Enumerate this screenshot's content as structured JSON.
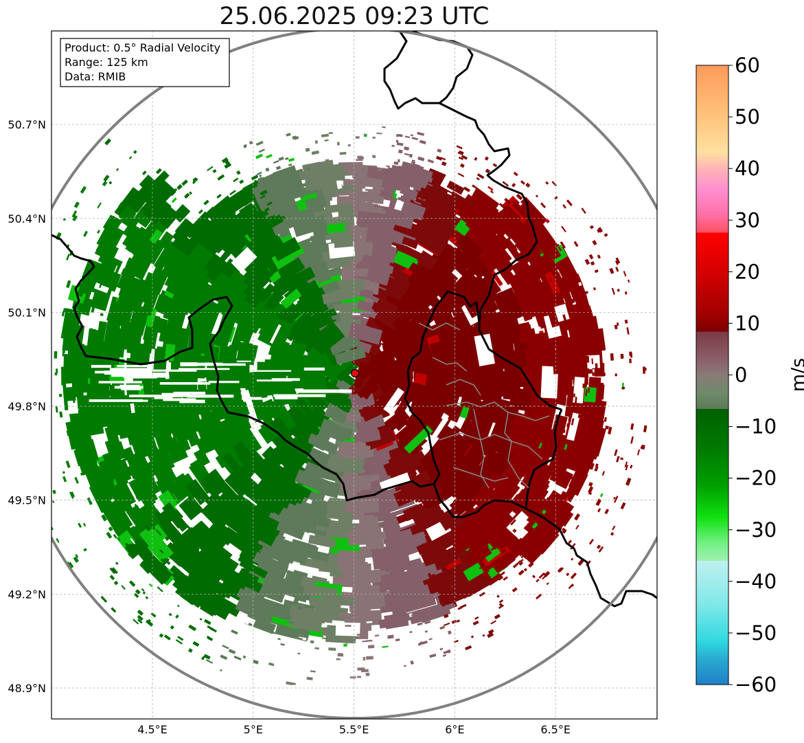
{
  "title": "25.06.2025 09:23 UTC",
  "info_box": {
    "product": "Product: 0.5° Radial Velocity",
    "range": "Range: 125 km",
    "data": "Data: RMIB"
  },
  "map": {
    "lon_range": [
      4.0,
      6.99
    ],
    "lat_range": [
      48.8,
      50.99
    ],
    "lon_ticks": [
      "4.5°E",
      "5°E",
      "5.5°E",
      "6°E",
      "6.5°E"
    ],
    "lat_ticks": [
      "48.9°N",
      "49.2°N",
      "49.5°N",
      "49.8°N",
      "50.1°N",
      "50.4°N",
      "50.7°N"
    ],
    "radar_site": {
      "lon": 5.505,
      "lat": 49.914
    },
    "range_ring_km": 125,
    "grid": true
  },
  "colorbar": {
    "label": "m/s",
    "ticks": [
      "60",
      "50",
      "40",
      "30",
      "20",
      "10",
      "0",
      "−10",
      "−20",
      "−30",
      "−40",
      "−50",
      "−60"
    ],
    "vmin": -60,
    "vmax": 60
  },
  "colors": {
    "outbound_dark": "#7a0000",
    "outbound_red": "#b30000",
    "near_zero_pink": "#8a6a72",
    "near_zero_green": "#5e7a5a",
    "inbound_green": "#006b00",
    "inbound_bright": "#0aa80a",
    "border": "#000000",
    "range_ring": "#808080",
    "radar_marker": "#e01010"
  }
}
